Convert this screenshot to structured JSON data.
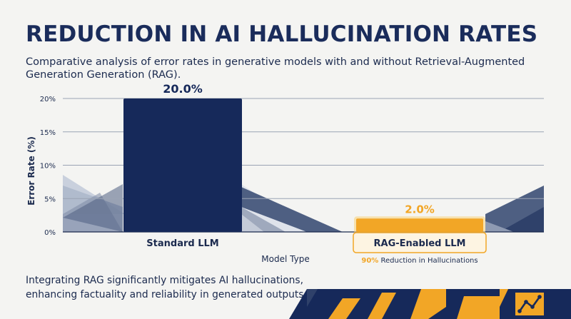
{
  "header": {
    "title": "REDUCTION IN AI HALLUCINATION RATES",
    "subtitle": "Comparative analysis of error rates in generative models with and without Retrieval-Augmented Generation Generation (RAG)."
  },
  "chart_data": {
    "type": "bar",
    "categories": [
      "Standard LLM",
      "RAG-Enabled LLM"
    ],
    "values": [
      20.0,
      2.0
    ],
    "data_labels": [
      "20.0%",
      "2.0%"
    ],
    "xlabel": "Model Type",
    "ylabel": "Error Rate (%)",
    "ylim": [
      0,
      20
    ],
    "yticks": [
      0,
      5,
      10,
      15,
      20
    ],
    "ytick_labels": [
      "0%",
      "5%",
      "10%",
      "15%",
      "20%"
    ],
    "grid": true,
    "colors": [
      "#16295a",
      "#f2a626"
    ],
    "annotation": {
      "highlight": "90%",
      "text": "Reduction in Hallucinations"
    }
  },
  "insight": "Integrating RAG significantly mitigates AI hallucinations, enhancing factuality and reliability in generated outputs.",
  "colors": {
    "navy": "#16295a",
    "amber": "#f2a626",
    "grid": "#9aa3b4",
    "background": "#f4f4f2"
  },
  "logo": {
    "icon": "trend-line-icon"
  }
}
